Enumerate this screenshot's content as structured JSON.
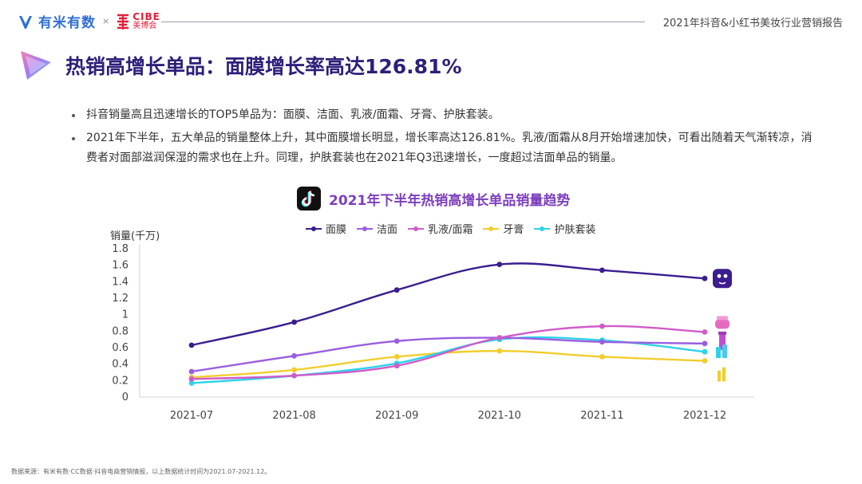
{
  "header": {
    "brand_youmi": "有米有数",
    "brand_sep": "×",
    "brand_cibe_en": "CIBE",
    "brand_cibe_cn": "美博会",
    "report_title": "2021年抖音&小红书美妆行业营销报告"
  },
  "page": {
    "title": "热销高增长单品：面膜增长率高达126.81%",
    "bullets": [
      "抖音销量高且迅速增长的TOP5单品为：面膜、洁面、乳液/面霜、牙膏、护肤套装。",
      "2021年下半年，五大单品的销量整体上升，其中面膜增长明显，增长率高达126.81%。乳液/面霜从8月开始增速加快，可看出随着天气渐转凉，消费者对面部滋润保湿的需求也在上升。同理，护肤套装也在2021年Q3迅速增长，一度超过洁面单品的销量。"
    ],
    "source": "数据来源：有米有数·CC数据·抖音电商营销情报，以上数据统计时间为2021.07-2021.12。"
  },
  "colors": {
    "title": "#2d1f7a",
    "chart_title": "#7c3fbf"
  },
  "chart_data": {
    "type": "line",
    "title": "2021年下半年热销高增长单品销量趋势",
    "ylabel": "销量(千万)",
    "xlabel": "",
    "categories": [
      "2021-07",
      "2021-08",
      "2021-09",
      "2021-10",
      "2021-11",
      "2021-12"
    ],
    "ylim": [
      0,
      1.8
    ],
    "yticks": [
      "0",
      "0.2",
      "0.4",
      "0.6",
      "0.8",
      "1",
      "1.2",
      "1.4",
      "1.6",
      "1.8"
    ],
    "ytick_values": [
      0,
      0.2,
      0.4,
      0.6,
      0.8,
      1,
      1.2,
      1.4,
      1.6,
      1.8
    ],
    "legend_position": "top",
    "series": [
      {
        "name": "面膜",
        "color": "#3b1d8f",
        "values": [
          0.63,
          0.91,
          1.3,
          1.61,
          1.54,
          1.44
        ],
        "icon": "face-mask-icon"
      },
      {
        "name": "洁面",
        "color": "#9a5ee0",
        "values": [
          0.31,
          0.5,
          0.68,
          0.72,
          0.67,
          0.65
        ],
        "icon": "cleanser-icon"
      },
      {
        "name": "乳液/面霜",
        "color": "#d05cc8",
        "values": [
          0.22,
          0.26,
          0.38,
          0.72,
          0.86,
          0.79
        ],
        "icon": "cream-icon"
      },
      {
        "name": "牙膏",
        "color": "#f2cd2e",
        "values": [
          0.24,
          0.33,
          0.49,
          0.56,
          0.49,
          0.44
        ],
        "icon": "toothpaste-icon"
      },
      {
        "name": "护肤套装",
        "color": "#2dd3e8",
        "values": [
          0.17,
          0.26,
          0.41,
          0.7,
          0.69,
          0.55
        ],
        "icon": "skincare-set-icon"
      }
    ]
  }
}
